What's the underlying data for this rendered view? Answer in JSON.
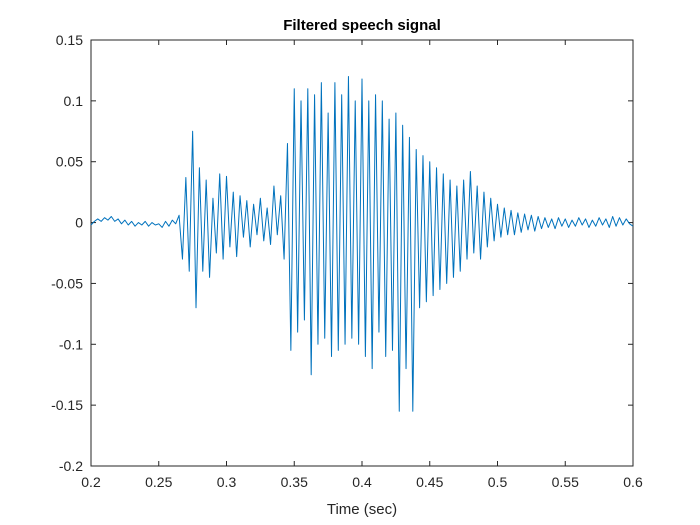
{
  "chart_data": {
    "type": "line",
    "title": "Filtered speech signal",
    "x_label": "Time (sec)",
    "color": "#0072bd",
    "xlim": [
      0.2,
      0.6
    ],
    "xticks": [
      0.2,
      0.25,
      0.3,
      0.35,
      0.4,
      0.45,
      0.5,
      0.55,
      0.6
    ],
    "ylim": [
      -0.2,
      0.15
    ],
    "yticks": [
      -0.2,
      -0.15,
      -0.1,
      -0.05,
      0,
      0.05,
      0.1,
      0.15
    ],
    "x": [
      0.2,
      0.2025,
      0.205,
      0.2075,
      0.21,
      0.2125,
      0.215,
      0.2175,
      0.22,
      0.2225,
      0.225,
      0.2275,
      0.23,
      0.2325,
      0.235,
      0.2375,
      0.24,
      0.2425,
      0.245,
      0.2475,
      0.25,
      0.2525,
      0.255,
      0.2575,
      0.26,
      0.2625,
      0.265,
      0.2675,
      0.27,
      0.2725,
      0.275,
      0.2775,
      0.28,
      0.2825,
      0.285,
      0.2875,
      0.29,
      0.2925,
      0.295,
      0.2975,
      0.3,
      0.3025,
      0.305,
      0.3075,
      0.31,
      0.3125,
      0.315,
      0.3175,
      0.32,
      0.3225,
      0.325,
      0.3275,
      0.33,
      0.3325,
      0.335,
      0.3375,
      0.34,
      0.3425,
      0.345,
      0.3475,
      0.35,
      0.3525,
      0.355,
      0.3575,
      0.36,
      0.3625,
      0.365,
      0.3675,
      0.37,
      0.3725,
      0.375,
      0.3775,
      0.38,
      0.3825,
      0.385,
      0.3875,
      0.39,
      0.3925,
      0.395,
      0.3975,
      0.4,
      0.4025,
      0.405,
      0.4075,
      0.41,
      0.4125,
      0.415,
      0.4175,
      0.42,
      0.4225,
      0.425,
      0.4275,
      0.43,
      0.4325,
      0.435,
      0.4375,
      0.44,
      0.4425,
      0.445,
      0.4475,
      0.45,
      0.4525,
      0.455,
      0.4575,
      0.46,
      0.4625,
      0.465,
      0.4675,
      0.47,
      0.4725,
      0.475,
      0.4775,
      0.48,
      0.4825,
      0.485,
      0.4875,
      0.49,
      0.4925,
      0.495,
      0.4975,
      0.5,
      0.5025,
      0.505,
      0.5075,
      0.51,
      0.5125,
      0.515,
      0.5175,
      0.52,
      0.5225,
      0.525,
      0.5275,
      0.53,
      0.5325,
      0.535,
      0.5375,
      0.54,
      0.5425,
      0.545,
      0.5475,
      0.55,
      0.5525,
      0.555,
      0.5575,
      0.56,
      0.5625,
      0.565,
      0.5675,
      0.57,
      0.5725,
      0.575,
      0.5775,
      0.58,
      0.5825,
      0.585,
      0.5875,
      0.59,
      0.5925,
      0.595,
      0.5975,
      0.6
    ],
    "values": [
      -0.002,
      0.001,
      0.003,
      0.001,
      0.004,
      0.002,
      0.005,
      0.001,
      0.003,
      -0.001,
      0.002,
      -0.002,
      0.001,
      -0.003,
      0.0,
      -0.002,
      0.001,
      -0.003,
      0.0,
      -0.002,
      -0.001,
      -0.004,
      0.001,
      -0.003,
      0.002,
      -0.001,
      0.006,
      -0.03,
      0.037,
      -0.04,
      0.075,
      -0.07,
      0.045,
      -0.04,
      0.035,
      -0.045,
      0.02,
      -0.025,
      0.04,
      -0.03,
      0.038,
      -0.02,
      0.025,
      -0.028,
      0.022,
      -0.012,
      0.018,
      -0.02,
      0.015,
      -0.01,
      0.02,
      -0.015,
      0.012,
      -0.018,
      0.03,
      -0.01,
      0.022,
      -0.03,
      0.065,
      -0.105,
      0.11,
      -0.09,
      0.1,
      -0.08,
      0.11,
      -0.125,
      0.105,
      -0.1,
      0.115,
      -0.095,
      0.09,
      -0.11,
      0.115,
      -0.105,
      0.105,
      -0.1,
      0.12,
      -0.095,
      0.1,
      -0.1,
      0.118,
      -0.11,
      0.1,
      -0.12,
      0.105,
      -0.09,
      0.1,
      -0.11,
      0.085,
      -0.105,
      0.09,
      -0.155,
      0.08,
      -0.12,
      0.07,
      -0.155,
      0.06,
      -0.07,
      0.055,
      -0.065,
      0.05,
      -0.06,
      0.045,
      -0.055,
      0.04,
      -0.05,
      0.035,
      -0.045,
      0.03,
      -0.04,
      0.035,
      -0.03,
      0.042,
      -0.025,
      0.03,
      -0.03,
      0.025,
      -0.02,
      0.02,
      -0.015,
      0.015,
      -0.012,
      0.012,
      -0.01,
      0.01,
      -0.01,
      0.008,
      -0.008,
      0.007,
      -0.006,
      0.006,
      -0.007,
      0.005,
      -0.005,
      0.004,
      -0.004,
      0.003,
      -0.005,
      0.004,
      -0.003,
      0.003,
      -0.004,
      0.002,
      -0.003,
      0.004,
      -0.002,
      0.003,
      -0.004,
      0.002,
      -0.003,
      0.004,
      -0.002,
      0.003,
      -0.004,
      0.005,
      -0.003,
      0.004,
      -0.002,
      0.003,
      -0.001,
      -0.003
    ]
  }
}
